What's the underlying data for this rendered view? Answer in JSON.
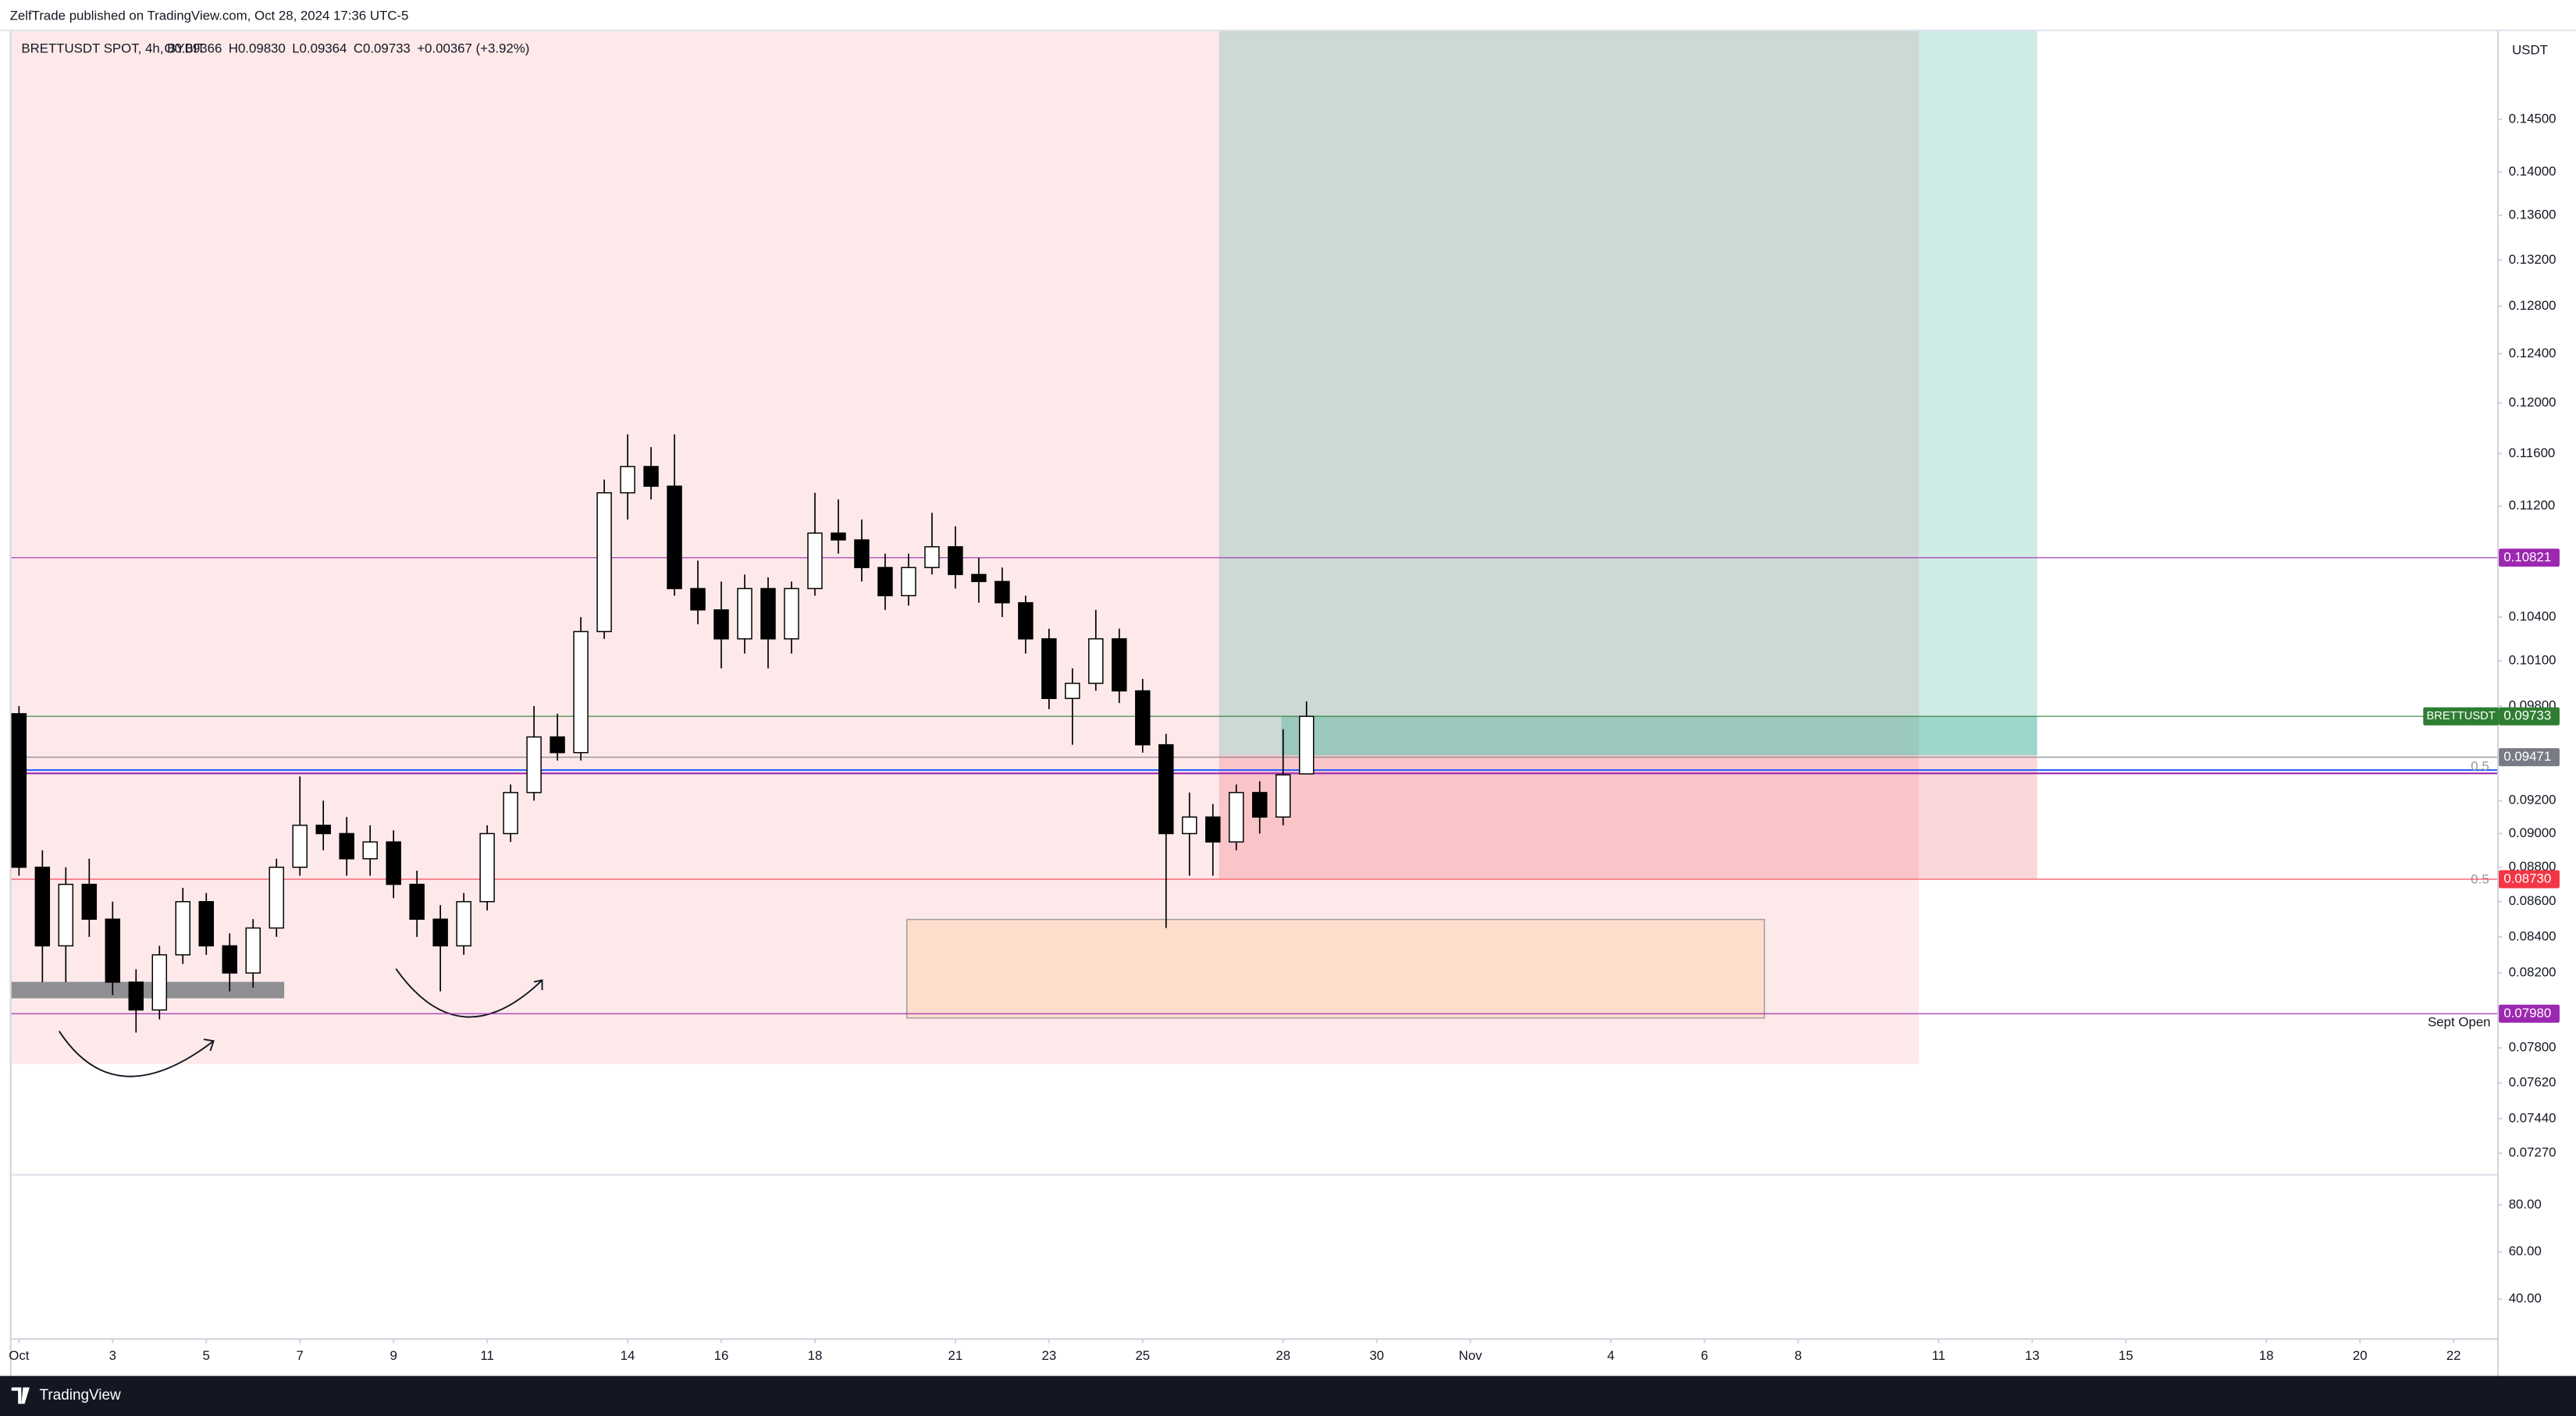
{
  "header": {
    "published": "ZelfTrade published on TradingView.com, Oct 28, 2024 17:36 UTC-5"
  },
  "chart_data": {
    "type": "candlestick",
    "title": "BRETTUSDT SPOT, 4h, BYBIT",
    "legend_ohlc": [
      "O0.09366",
      "H0.09830",
      "L0.09364",
      "C0.09733",
      "+0.00367 (+3.92%)"
    ],
    "currency": "USDT",
    "log_scale": true,
    "up_color": "#ffffff",
    "down_color": "#000000",
    "x": [
      0,
      0.5,
      1,
      1.5,
      2,
      2.5,
      3,
      3.5,
      4,
      4.5,
      5,
      5.5,
      6,
      6.5,
      7,
      7.5,
      8,
      8.5,
      9,
      9.5,
      10,
      10.5,
      11,
      11.5,
      12,
      12.5,
      13,
      13.5,
      14,
      14.5,
      15,
      15.5,
      16,
      16.5,
      17,
      17.5,
      18,
      18.5,
      19,
      19.5,
      20,
      20.5,
      21,
      21.5,
      22,
      22.5,
      23,
      23.5,
      24,
      24.5,
      25,
      25.5,
      26,
      26.5,
      27,
      27.5
    ],
    "open": [
      0.0975,
      0.088,
      0.0835,
      0.087,
      0.085,
      0.0815,
      0.08,
      0.083,
      0.086,
      0.0835,
      0.082,
      0.0845,
      0.088,
      0.0905,
      0.09,
      0.0885,
      0.0895,
      0.087,
      0.085,
      0.0835,
      0.086,
      0.09,
      0.0925,
      0.096,
      0.095,
      0.103,
      0.113,
      0.115,
      0.1135,
      0.106,
      0.1045,
      0.1025,
      0.106,
      0.1025,
      0.106,
      0.11,
      0.1095,
      0.1075,
      0.1055,
      0.1075,
      0.109,
      0.107,
      0.1065,
      0.105,
      0.1025,
      0.0985,
      0.0995,
      0.1025,
      0.099,
      0.0955,
      0.09,
      0.091,
      0.0895,
      0.0925,
      0.091,
      0.09366
    ],
    "high": [
      0.098,
      0.089,
      0.088,
      0.0885,
      0.086,
      0.0822,
      0.0835,
      0.0868,
      0.0865,
      0.0842,
      0.085,
      0.0885,
      0.0935,
      0.092,
      0.091,
      0.0905,
      0.0902,
      0.0878,
      0.0858,
      0.0865,
      0.0905,
      0.093,
      0.098,
      0.0975,
      0.104,
      0.114,
      0.1175,
      0.1165,
      0.1175,
      0.108,
      0.1065,
      0.107,
      0.1068,
      0.1065,
      0.113,
      0.1125,
      0.111,
      0.1085,
      0.1085,
      0.1115,
      0.1105,
      0.1082,
      0.1075,
      0.1055,
      0.1032,
      0.1005,
      0.1045,
      0.1032,
      0.0998,
      0.0962,
      0.0925,
      0.0918,
      0.093,
      0.0932,
      0.0965,
      0.0983
    ],
    "low": [
      0.0875,
      0.0815,
      0.0815,
      0.084,
      0.0808,
      0.0788,
      0.0795,
      0.0825,
      0.083,
      0.081,
      0.0812,
      0.084,
      0.0875,
      0.089,
      0.0875,
      0.0875,
      0.0862,
      0.084,
      0.081,
      0.083,
      0.0855,
      0.0895,
      0.092,
      0.0945,
      0.0945,
      0.1025,
      0.111,
      0.1125,
      0.1055,
      0.1035,
      0.1005,
      0.1015,
      0.1005,
      0.1015,
      0.1055,
      0.1085,
      0.1065,
      0.1045,
      0.1048,
      0.107,
      0.106,
      0.105,
      0.104,
      0.1015,
      0.0978,
      0.0955,
      0.099,
      0.0982,
      0.095,
      0.0845,
      0.0875,
      0.0875,
      0.089,
      0.09,
      0.0905,
      0.09364
    ],
    "close": [
      0.088,
      0.0835,
      0.087,
      0.085,
      0.0815,
      0.08,
      0.083,
      0.086,
      0.0835,
      0.082,
      0.0845,
      0.088,
      0.0905,
      0.09,
      0.0885,
      0.0895,
      0.087,
      0.085,
      0.0835,
      0.086,
      0.09,
      0.0925,
      0.096,
      0.095,
      0.103,
      0.113,
      0.115,
      0.1135,
      0.106,
      0.1045,
      0.1025,
      0.106,
      0.1025,
      0.106,
      0.11,
      0.1095,
      0.1075,
      0.1055,
      0.1075,
      0.109,
      0.107,
      0.1065,
      0.105,
      0.1025,
      0.0985,
      0.0995,
      0.1025,
      0.099,
      0.0955,
      0.09,
      0.091,
      0.0895,
      0.0925,
      0.091,
      0.0936,
      0.09733
    ],
    "xlim": [
      -0.16,
      52.93
    ],
    "xticks": [
      {
        "value": 0,
        "label": "Oct"
      },
      {
        "value": 2,
        "label": "3"
      },
      {
        "value": 4,
        "label": "5"
      },
      {
        "value": 6,
        "label": "7"
      },
      {
        "value": 8,
        "label": "9"
      },
      {
        "value": 10,
        "label": "11"
      },
      {
        "value": 13,
        "label": "14"
      },
      {
        "value": 15,
        "label": "16"
      },
      {
        "value": 17,
        "label": "18"
      },
      {
        "value": 20,
        "label": "21"
      },
      {
        "value": 22,
        "label": "23"
      },
      {
        "value": 24,
        "label": "25"
      },
      {
        "value": 27,
        "label": "28"
      },
      {
        "value": 29,
        "label": "30"
      },
      {
        "value": 31,
        "label": "Nov"
      },
      {
        "value": 34,
        "label": "4"
      },
      {
        "value": 36,
        "label": "6"
      },
      {
        "value": 38,
        "label": "8"
      },
      {
        "value": 41,
        "label": "11"
      },
      {
        "value": 43,
        "label": "13"
      },
      {
        "value": 45,
        "label": "15"
      },
      {
        "value": 48,
        "label": "18"
      },
      {
        "value": 50,
        "label": "20"
      },
      {
        "value": 52,
        "label": "22"
      }
    ],
    "ylim": [
      0.0717,
      0.1538
    ],
    "yticks": [
      {
        "value": 0.145,
        "label": "0.14500"
      },
      {
        "value": 0.14,
        "label": "0.14000"
      },
      {
        "value": 0.136,
        "label": "0.13600"
      },
      {
        "value": 0.132,
        "label": "0.13200"
      },
      {
        "value": 0.128,
        "label": "0.12800"
      },
      {
        "value": 0.124,
        "label": "0.12400"
      },
      {
        "value": 0.12,
        "label": "0.12000"
      },
      {
        "value": 0.116,
        "label": "0.11600"
      },
      {
        "value": 0.112,
        "label": "0.11200"
      },
      {
        "value": 0.104,
        "label": "0.10400"
      },
      {
        "value": 0.101,
        "label": "0.10100"
      },
      {
        "value": 0.098,
        "label": "0.09800"
      },
      {
        "value": 0.092,
        "label": "0.09200"
      },
      {
        "value": 0.09,
        "label": "0.09000"
      },
      {
        "value": 0.088,
        "label": "0.08800"
      },
      {
        "value": 0.086,
        "label": "0.08600"
      },
      {
        "value": 0.084,
        "label": "0.08400"
      },
      {
        "value": 0.082,
        "label": "0.08200"
      },
      {
        "value": 0.078,
        "label": "0.07800"
      },
      {
        "value": 0.0762,
        "label": "0.07620"
      },
      {
        "value": 0.0744,
        "label": "0.07440"
      },
      {
        "value": 0.0727,
        "label": "0.07270"
      }
    ],
    "levels": [
      {
        "value": 0.10821,
        "color": "#9c27b0"
      },
      {
        "value": 0.09733,
        "name": "BRETTUSDT",
        "color": "#2e7d32"
      },
      {
        "value": 0.09471,
        "color": "#787b86"
      },
      {
        "value": 0.0873,
        "label": "0.08730",
        "color": "#f23645"
      },
      {
        "value": 0.0798,
        "label": "0.07980",
        "color": "#9c27b0"
      }
    ]
  },
  "indicator": {
    "ylim": [
      23.4,
      92.4
    ],
    "yticks": [
      {
        "value": 80,
        "label": "80.00"
      },
      {
        "value": 60,
        "label": "60.00"
      },
      {
        "value": 40,
        "label": "40.00"
      }
    ]
  },
  "annotations": {
    "sept_open": "Sept Open",
    "fib_upper": "0.5",
    "fib_lower": "0.5"
  },
  "footer": {
    "brand": "TradingView"
  }
}
